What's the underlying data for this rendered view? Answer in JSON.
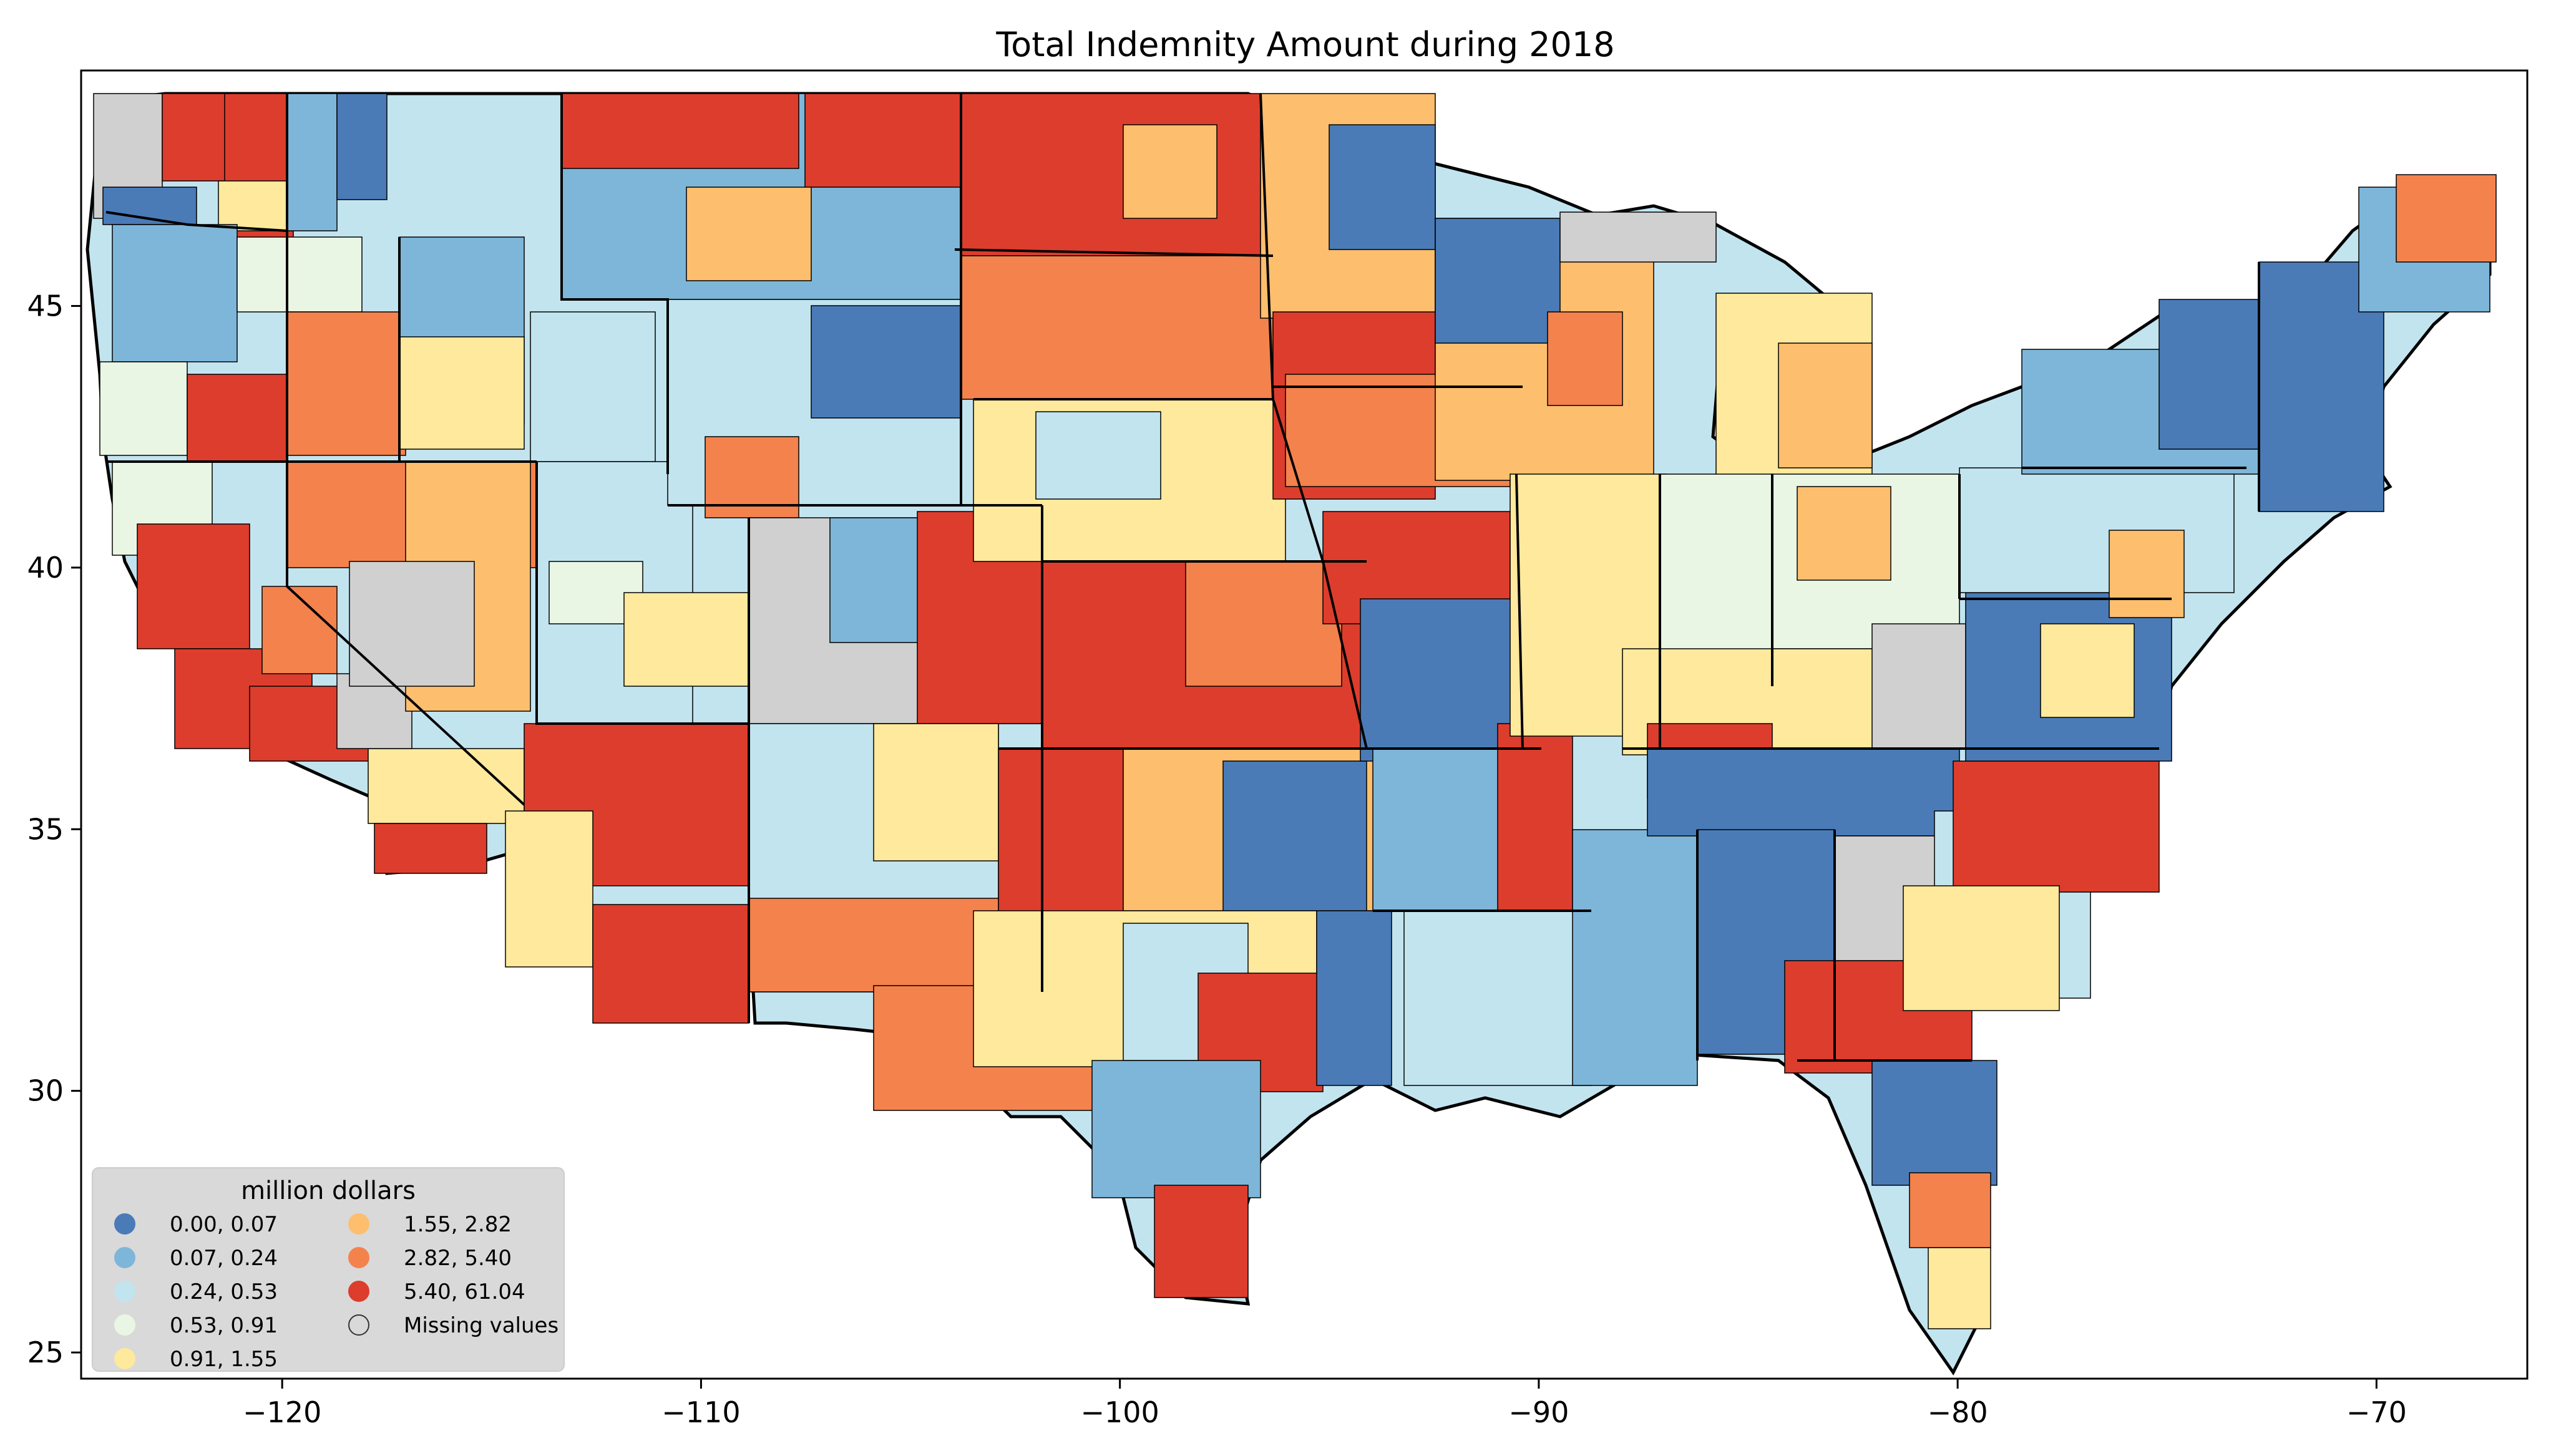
{
  "map": {
    "title": "Total Indemnity Amount during 2018",
    "x_ticks": [
      "−120",
      "−110",
      "−100",
      "−90",
      "−80",
      "−70"
    ],
    "x_tick_values": [
      -120,
      -110,
      -100,
      -90,
      -80,
      -70
    ],
    "y_ticks": [
      "25",
      "30",
      "35",
      "40",
      "45"
    ],
    "y_tick_values": [
      25,
      30,
      35,
      40,
      45
    ],
    "x_range": [
      -124.8,
      -66.4
    ],
    "y_range": [
      24.5,
      49.5
    ],
    "legend": {
      "title": "million dollars",
      "placement": "bottom-left",
      "entries": [
        {
          "label": "0.00,  0.07",
          "color": "#4a7bb7"
        },
        {
          "label": "0.07,  0.24",
          "color": "#7eb6d9"
        },
        {
          "label": "0.24,  0.53",
          "color": "#c2e4ef"
        },
        {
          "label": "0.53,  0.91",
          "color": "#eaf6e4"
        },
        {
          "label": "0.91,  1.55",
          "color": "#fee99c"
        },
        {
          "label": "1.55,  2.82",
          "color": "#fdbe6e"
        },
        {
          "label": "2.82,  5.40",
          "color": "#f4824c"
        },
        {
          "label": "5.40, 61.04",
          "color": "#dd3d2d"
        },
        {
          "label": "Missing values",
          "color": "#d0d0d0"
        }
      ]
    }
  }
}
